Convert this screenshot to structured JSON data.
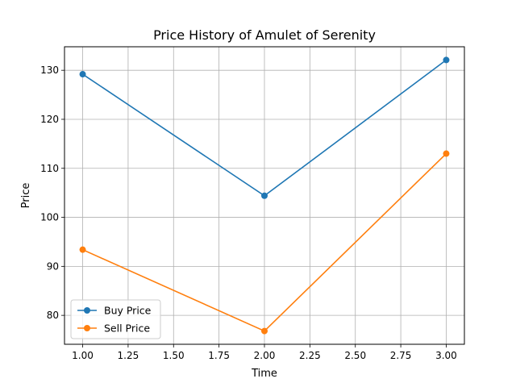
{
  "chart_data": {
    "type": "line",
    "title": "Price History of Amulet of Serenity",
    "xlabel": "Time",
    "ylabel": "Price",
    "x": [
      1.0,
      2.0,
      3.0
    ],
    "series": [
      {
        "name": "Buy Price",
        "values": [
          129.2,
          104.4,
          132.1
        ],
        "color": "#1f77b4",
        "marker": "circle"
      },
      {
        "name": "Sell Price",
        "values": [
          93.4,
          76.8,
          113.0
        ],
        "color": "#ff7f0e",
        "marker": "circle"
      }
    ],
    "xlim": [
      0.9,
      3.1
    ],
    "ylim": [
      74.1,
      134.8
    ],
    "xticks": [
      1.0,
      1.25,
      1.5,
      1.75,
      2.0,
      2.25,
      2.5,
      2.75,
      3.0
    ],
    "xtick_labels": [
      "1.00",
      "1.25",
      "1.50",
      "1.75",
      "2.00",
      "2.25",
      "2.50",
      "2.75",
      "3.00"
    ],
    "yticks": [
      80,
      90,
      100,
      110,
      120,
      130
    ],
    "ytick_labels": [
      "80",
      "90",
      "100",
      "110",
      "120",
      "130"
    ],
    "grid": true,
    "legend_position": "lower-left"
  }
}
